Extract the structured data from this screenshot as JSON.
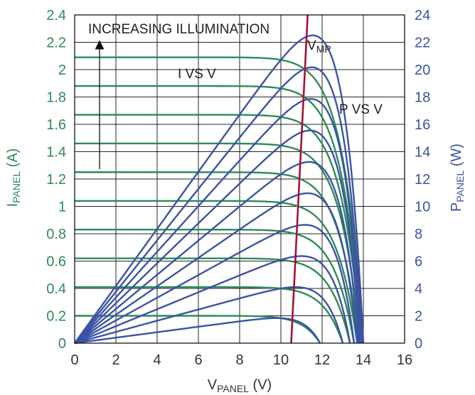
{
  "chart_data": {
    "type": "line",
    "xlabel": {
      "main": "V",
      "sub": "PANEL",
      "unit": " (V)"
    },
    "ylabel_left": {
      "main": "I",
      "sub": "PANEL",
      "unit": " (A)"
    },
    "ylabel_right": {
      "main": "P",
      "sub": "PANEL",
      "unit": " (W)"
    },
    "xlim": [
      0,
      16
    ],
    "ylim_left": [
      0,
      2.4
    ],
    "ylim_right": [
      0,
      24
    ],
    "x_ticks": [
      "0",
      "2",
      "4",
      "6",
      "8",
      "10",
      "12",
      "14",
      "16"
    ],
    "y_left_ticks": [
      "0",
      "0.2",
      "0.4",
      "0.6",
      "0.8",
      "1",
      "1.2",
      "1.4",
      "1.6",
      "1.8",
      "2",
      "2.2",
      "2.4"
    ],
    "y_right_ticks": [
      "0",
      "2",
      "4",
      "6",
      "8",
      "10",
      "12",
      "14",
      "16",
      "18",
      "20",
      "22",
      "24"
    ],
    "grid": true,
    "colors": {
      "current": "#2e8b57",
      "power": "#3b53a4",
      "vmp": "#a01535",
      "tick_left": "#2e8b57",
      "tick_right": "#3b53a4"
    },
    "curve_model": {
      "isc_values": [
        0.2,
        0.4,
        0.6,
        0.8,
        1.0,
        1.2,
        1.4,
        1.6,
        1.8,
        2.0,
        2.2
      ],
      "voc_values": [
        11.9,
        13.0,
        13.4,
        13.6,
        13.7,
        13.8,
        13.85,
        13.9,
        13.95,
        13.95,
        14.0
      ],
      "vmp_values": [
        9.6,
        10.7,
        10.75,
        10.8,
        10.85,
        10.9,
        10.95,
        11.0,
        11.05,
        11.1,
        11.15
      ],
      "pmp_values": [
        1.6,
        3.6,
        5.6,
        7.6,
        9.5,
        11.5,
        13.5,
        15.6,
        17.5,
        19.5,
        21.0
      ]
    },
    "current_series": [
      {
        "isc": 0.2,
        "voc": 11.9
      },
      {
        "isc": 0.41,
        "voc": 13.0
      },
      {
        "isc": 0.62,
        "voc": 13.35
      },
      {
        "isc": 0.83,
        "voc": 13.55
      },
      {
        "isc": 1.04,
        "voc": 13.7
      },
      {
        "isc": 1.25,
        "voc": 13.78
      },
      {
        "isc": 1.46,
        "voc": 13.85
      },
      {
        "isc": 1.67,
        "voc": 13.9
      },
      {
        "isc": 1.88,
        "voc": 13.95
      },
      {
        "isc": 2.09,
        "voc": 14.0
      }
    ],
    "vmp_line": {
      "x": [
        10.5,
        11.3
      ],
      "y": [
        0,
        2.4
      ]
    },
    "annotations": {
      "increasing": "INCREASING ILLUMINATION",
      "i_vs_v": "I VS V",
      "p_vs_v": "P VS V",
      "vmp_main": "V",
      "vmp_sub": "MP"
    }
  }
}
